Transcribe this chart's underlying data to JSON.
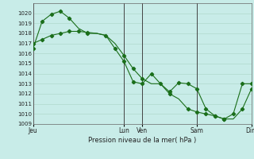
{
  "bg_color": "#c8ece8",
  "grid_color": "#b0d8cc",
  "line_color": "#1a6e1a",
  "xlabel": "Pression niveau de la mer( hPa )",
  "ylim": [
    1009,
    1021
  ],
  "yticks": [
    1009,
    1010,
    1011,
    1012,
    1013,
    1014,
    1015,
    1016,
    1017,
    1018,
    1019,
    1020
  ],
  "xtick_labels": [
    "Jeu",
    "Lun",
    "Ven",
    "Sam",
    "Dim"
  ],
  "xtick_positions": [
    0.0,
    5.0,
    6.0,
    9.0,
    12.0
  ],
  "vline_positions": [
    0.0,
    5.0,
    6.0,
    9.0,
    12.0
  ],
  "series1_x": [
    0.0,
    0.5,
    1.0,
    1.5,
    2.0,
    2.5,
    3.0,
    3.5,
    4.0,
    4.5,
    5.0,
    5.5,
    6.0,
    6.5,
    7.0,
    7.5,
    8.0,
    8.5,
    9.0,
    9.5,
    10.0,
    10.5,
    11.0,
    11.5,
    12.0
  ],
  "series1_y": [
    1016.5,
    1019.2,
    1019.9,
    1020.2,
    1019.5,
    1018.5,
    1018.0,
    1018.0,
    1017.8,
    1016.5,
    1015.2,
    1013.2,
    1013.0,
    1014.0,
    1013.0,
    1012.2,
    1013.1,
    1013.0,
    1012.5,
    1010.5,
    1009.8,
    1009.5,
    1010.0,
    1013.0,
    1013.0
  ],
  "series2_x": [
    0.0,
    0.5,
    1.0,
    1.5,
    2.0,
    2.5,
    3.0,
    3.5,
    4.0,
    4.5,
    5.0,
    5.5,
    6.0,
    6.5,
    7.0,
    7.5,
    8.0,
    8.5,
    9.0,
    9.5,
    10.0,
    10.5,
    11.0,
    11.5,
    12.0
  ],
  "series2_y": [
    1017.0,
    1017.4,
    1017.8,
    1018.0,
    1018.2,
    1018.2,
    1018.1,
    1018.0,
    1017.8,
    1017.0,
    1015.8,
    1014.5,
    1013.5,
    1013.0,
    1013.0,
    1012.0,
    1011.5,
    1010.5,
    1010.2,
    1010.0,
    1009.8,
    1009.5,
    1009.5,
    1010.5,
    1012.5
  ],
  "markers1_x": [
    0.0,
    0.5,
    1.0,
    1.5,
    2.0,
    3.0,
    4.5,
    5.0,
    5.5,
    6.0,
    6.5,
    7.0,
    7.5,
    8.0,
    8.5,
    9.0,
    9.5,
    10.0,
    10.5,
    11.0,
    11.5,
    12.0
  ],
  "markers1_y": [
    1016.5,
    1019.2,
    1019.9,
    1020.2,
    1019.5,
    1018.0,
    1016.5,
    1015.2,
    1013.2,
    1013.0,
    1014.0,
    1013.0,
    1012.2,
    1013.1,
    1013.0,
    1012.5,
    1010.5,
    1009.8,
    1009.5,
    1010.0,
    1013.0,
    1013.0
  ],
  "markers2_x": [
    0.0,
    0.5,
    1.0,
    1.5,
    2.0,
    2.5,
    3.0,
    4.0,
    5.0,
    5.5,
    6.0,
    7.5,
    8.5,
    9.0,
    9.5,
    10.0,
    10.5,
    11.5,
    12.0
  ],
  "markers2_y": [
    1017.0,
    1017.4,
    1017.8,
    1018.0,
    1018.2,
    1018.2,
    1018.1,
    1017.8,
    1015.8,
    1014.5,
    1013.5,
    1012.0,
    1010.5,
    1010.2,
    1010.0,
    1009.8,
    1009.5,
    1010.5,
    1012.5
  ]
}
